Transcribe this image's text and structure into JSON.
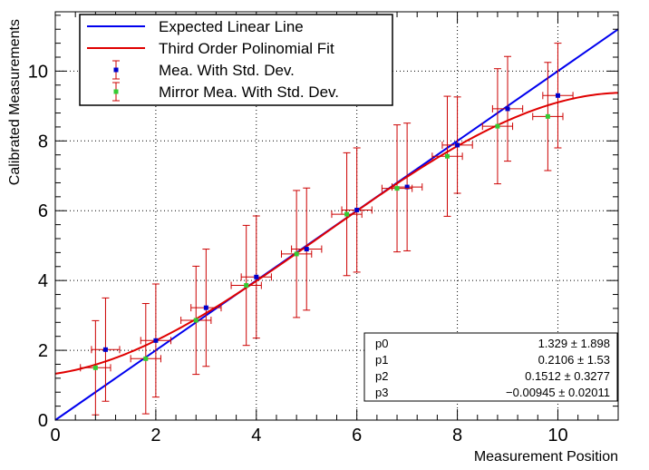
{
  "chart_data": {
    "type": "scatter",
    "xlabel": "Measurement Position",
    "ylabel": "Calibrated Measurements",
    "xlim": [
      0,
      11.2
    ],
    "ylim": [
      0,
      11.7
    ],
    "x_ticks": [
      0,
      2,
      4,
      6,
      8,
      10
    ],
    "y_ticks": [
      0,
      2,
      4,
      6,
      8,
      10
    ],
    "x_tick_labels": [
      "0",
      "2",
      "4",
      "6",
      "8",
      "10"
    ],
    "y_tick_labels": [
      "0",
      "2",
      "4",
      "6",
      "8",
      "10"
    ],
    "grid": true,
    "legend_position": "top-left",
    "legend": [
      {
        "label": "Expected Linear Line",
        "color": "#0000ee",
        "kind": "line"
      },
      {
        "label": "Third Order Polinomial Fit",
        "color": "#e00000",
        "kind": "line"
      },
      {
        "label": "Mea. With Std. Dev.",
        "color": "#0000cc",
        "kind": "marker"
      },
      {
        "label": "Mirror Mea. With Std. Dev.",
        "color": "#33cc33",
        "kind": "marker"
      }
    ],
    "series": [
      {
        "name": "Expected Linear Line",
        "color": "#0000ee",
        "type": "line",
        "x": [
          0,
          11.2
        ],
        "y": [
          0,
          11.2
        ]
      },
      {
        "name": "Third Order Polinomial Fit",
        "color": "#e00000",
        "type": "function",
        "coefficients": [
          1.329,
          0.2106,
          0.1512,
          -0.00945
        ],
        "domain": [
          0,
          11.2
        ]
      },
      {
        "name": "Mea. With Std. Dev.",
        "color": "#0000cc",
        "errorbar_color": "#cc0000",
        "x": [
          1.0,
          2.0,
          3.0,
          4.0,
          5.0,
          6.0,
          7.0,
          8.0,
          9.0,
          10.0
        ],
        "y": [
          2.02,
          2.28,
          3.22,
          4.1,
          4.9,
          6.02,
          6.68,
          7.88,
          8.92,
          9.3
        ],
        "xerr": [
          0.28,
          0.3,
          0.3,
          0.3,
          0.3,
          0.3,
          0.3,
          0.3,
          0.3,
          0.3
        ],
        "yerr": [
          1.48,
          1.62,
          1.68,
          1.75,
          1.75,
          1.78,
          1.83,
          1.38,
          1.5,
          1.5
        ]
      },
      {
        "name": "Mirror Mea. With Std. Dev.",
        "color": "#33cc33",
        "errorbar_color": "#cc0000",
        "x": [
          0.8,
          1.8,
          2.8,
          3.8,
          4.8,
          5.8,
          6.8,
          7.8,
          8.8,
          9.8
        ],
        "y": [
          1.5,
          1.76,
          2.86,
          3.86,
          4.76,
          5.9,
          6.64,
          7.56,
          8.42,
          8.7
        ],
        "xerr": [
          0.3,
          0.3,
          0.3,
          0.3,
          0.3,
          0.3,
          0.3,
          0.3,
          0.3,
          0.3
        ],
        "yerr": [
          1.35,
          1.58,
          1.55,
          1.72,
          1.82,
          1.76,
          1.82,
          1.72,
          1.65,
          1.55
        ]
      }
    ],
    "fit_parameters": [
      {
        "name": "p0",
        "value": "1.329",
        "pm": "±",
        "error": "1.898"
      },
      {
        "name": "p1",
        "value": "0.2106",
        "pm": "±",
        "error": " 1.53"
      },
      {
        "name": "p2",
        "value": "0.1512",
        "pm": "±",
        "error": "0.3277"
      },
      {
        "name": "p3",
        "value": "−0.00945",
        "pm": "±",
        "error": "0.02011"
      }
    ]
  }
}
